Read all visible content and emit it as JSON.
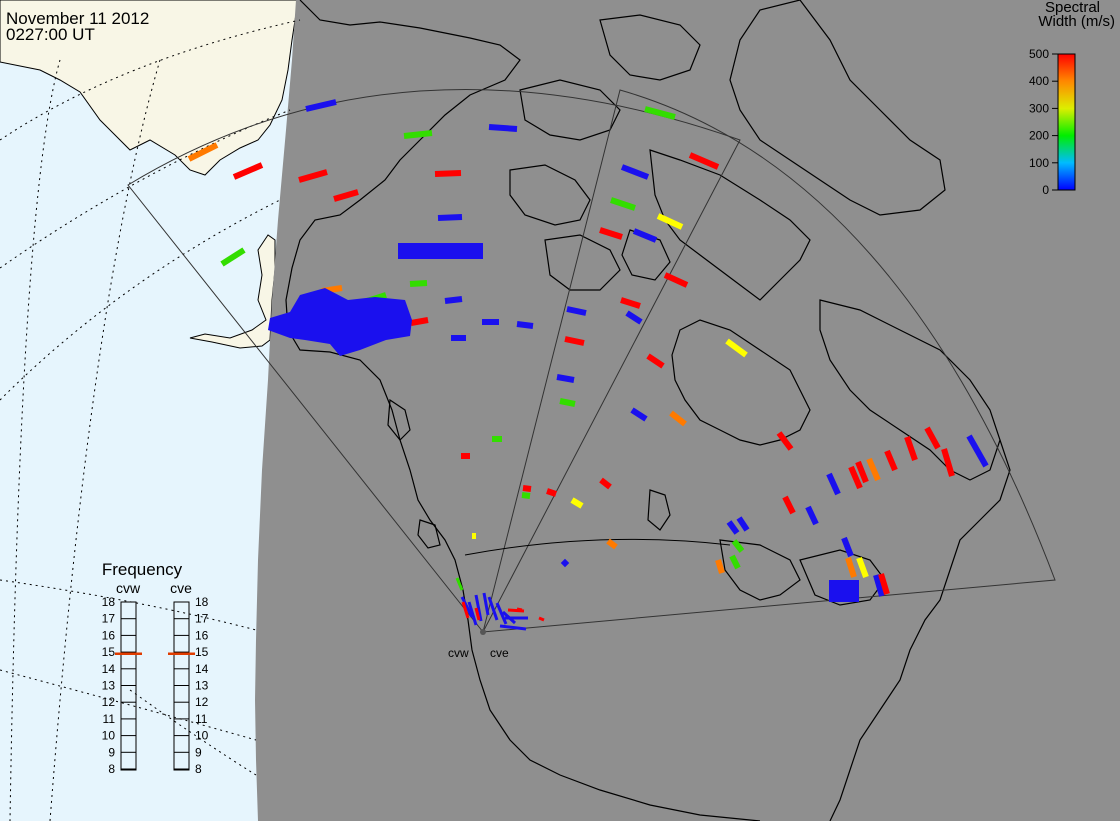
{
  "header": {
    "date": "November 11 2012",
    "time": "0227:00 UT"
  },
  "colorbar": {
    "title_line1": "Spectral",
    "title_line2": "Width (m/s)",
    "ticks": [
      "500",
      "400",
      "300",
      "200",
      "100",
      "0"
    ],
    "min": 0,
    "max": 500,
    "scale": "blue-cyan-green-yellow-orange-red"
  },
  "frequency_panel": {
    "title": "Frequency",
    "radars": [
      {
        "code": "cvw",
        "value": 14.9
      },
      {
        "code": "cve",
        "value": 14.9
      }
    ],
    "scale": [
      "18",
      "17",
      "16",
      "15",
      "14",
      "13",
      "12",
      "11",
      "10",
      "9",
      "8"
    ],
    "indicator_color": "#e03c00"
  },
  "radar_site_labels": [
    "cvw",
    "cve"
  ],
  "colors": {
    "night_shade": "#8f8f8f",
    "ocean": "#e6f5fd",
    "land_day": "#f8f6e6",
    "red": "#ff0000",
    "orange": "#ff7a00",
    "yellow": "#ffff00",
    "green": "#33dd00",
    "blue": "#1a10ee"
  }
}
